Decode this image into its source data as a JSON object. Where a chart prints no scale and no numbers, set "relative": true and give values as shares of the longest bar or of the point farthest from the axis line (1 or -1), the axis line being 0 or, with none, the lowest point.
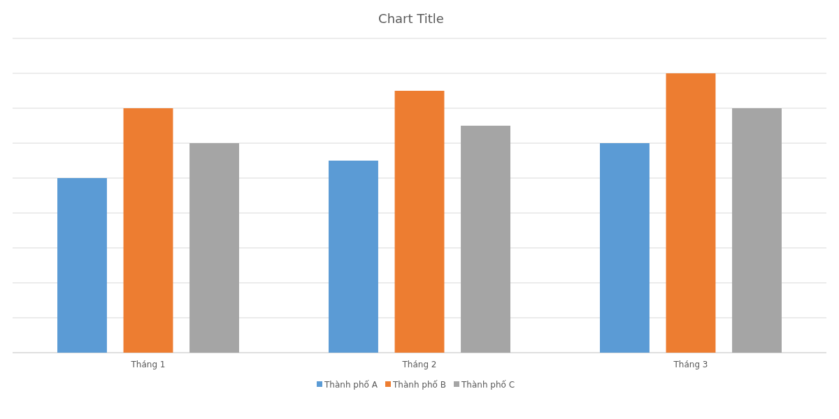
{
  "chart_data": {
    "type": "bar",
    "title": "Chart Title",
    "relative": true,
    "categories": [
      "Tháng 1",
      "Tháng 2",
      "Tháng 3"
    ],
    "series": [
      {
        "name": "Thành phố A",
        "color": "#5b9bd5",
        "values": [
          0.625,
          0.6875,
          0.75
        ]
      },
      {
        "name": "Thành phố B",
        "color": "#ed7d31",
        "values": [
          0.875,
          0.9375,
          1
        ]
      },
      {
        "name": "Thành phố C",
        "color": "#a5a5a5",
        "values": [
          0.75,
          0.8125,
          0.875
        ]
      }
    ],
    "grid": true,
    "legend": "bottom"
  }
}
